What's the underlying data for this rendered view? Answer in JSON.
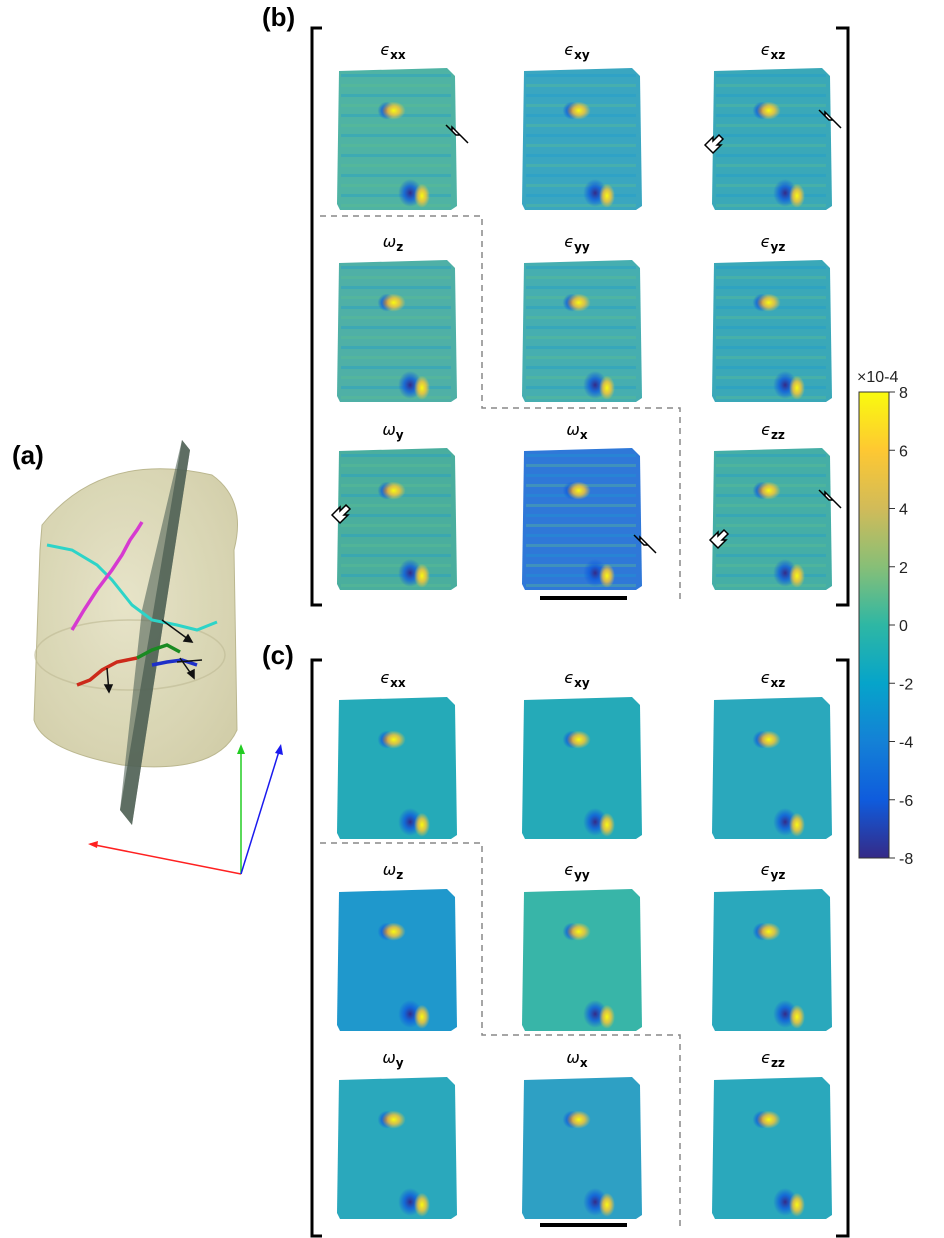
{
  "panels": {
    "a": "(a)",
    "b": "(b)",
    "c": "(c)"
  },
  "grid_titles": [
    {
      "sym": "ϵ",
      "sub": "xx"
    },
    {
      "sym": "ϵ",
      "sub": "xy"
    },
    {
      "sym": "ϵ",
      "sub": "xz"
    },
    {
      "sym": "ω",
      "sub": "z"
    },
    {
      "sym": "ϵ",
      "sub": "yy"
    },
    {
      "sym": "ϵ",
      "sub": "yz"
    },
    {
      "sym": "ω",
      "sub": "y"
    },
    {
      "sym": "ω",
      "sub": "x"
    },
    {
      "sym": "ϵ",
      "sub": "zz"
    }
  ],
  "colorbar": {
    "exponent": "×10-4",
    "ticks": [
      "8",
      "6",
      "4",
      "2",
      "0",
      "-2",
      "-4",
      "-6",
      "-8"
    ],
    "range": [
      -8,
      8
    ],
    "colormap": "parula",
    "stops": [
      "#352a87",
      "#0f5cdd",
      "#1481d6",
      "#06a4ca",
      "#2eb7a4",
      "#87bf77",
      "#d1bb59",
      "#fec832",
      "#f9fb0e"
    ]
  }
}
